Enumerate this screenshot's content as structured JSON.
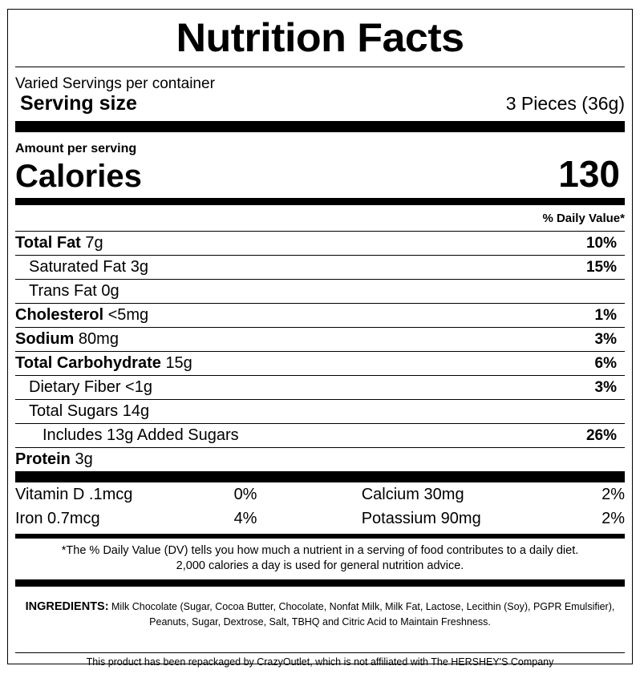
{
  "title": "Nutrition Facts",
  "servings_per_container": "Varied Servings per container",
  "serving_size": {
    "label": "Serving size",
    "value": "3 Pieces (36g)"
  },
  "amount_per_serving": "Amount per serving",
  "calories": {
    "label": "Calories",
    "value": "130"
  },
  "daily_value_header": "% Daily Value*",
  "nutrients": [
    {
      "name": "Total Fat",
      "amount": "7g",
      "dv": "10%"
    },
    {
      "name": "Saturated Fat",
      "amount": "3g",
      "dv": "15%"
    },
    {
      "name": "Trans Fat",
      "amount": "0g",
      "dv": ""
    },
    {
      "name": "Cholesterol",
      "amount": "<5mg",
      "dv": "1%"
    },
    {
      "name": "Sodium",
      "amount": "80mg",
      "dv": "3%"
    },
    {
      "name": "Total Carbohydrate",
      "amount": "15g",
      "dv": "6%"
    },
    {
      "name": "Dietary Fiber",
      "amount": "<1g",
      "dv": "3%"
    },
    {
      "name": "Total Sugars",
      "amount": "14g",
      "dv": ""
    },
    {
      "name": "Includes 13g Added Sugars",
      "amount": "",
      "dv": "26%"
    },
    {
      "name": "Protein",
      "amount": "3g",
      "dv": ""
    }
  ],
  "vitamins": [
    {
      "name": "Vitamin D",
      "amount": ".1mcg",
      "dv": "0%"
    },
    {
      "name": "Calcium",
      "amount": "30mg",
      "dv": "2%"
    },
    {
      "name": "Iron",
      "amount": "0.7mcg",
      "dv": "4%"
    },
    {
      "name": "Potassium",
      "amount": "90mg",
      "dv": "2%"
    }
  ],
  "footnote": {
    "line1": "*The % Daily Value (DV) tells you how much a nutrient in a serving of food contributes to a daily diet.",
    "line2": "2,000 calories a day is used for general nutrition advice."
  },
  "ingredients": {
    "heading": "INGREDIENTS:",
    "text": " Milk Chocolate (Sugar, Cocoa Butter, Chocolate, Nonfat Milk, Milk Fat, Lactose, Lecithin (Soy), PGPR Emulsifier), Peanuts, Sugar, Dextrose, Salt, TBHQ and Citric Acid to Maintain Freshness."
  },
  "repackage_note": "This product has been repackaged by CrazyOutlet, which is not affiliated with The HERSHEY'S Company"
}
